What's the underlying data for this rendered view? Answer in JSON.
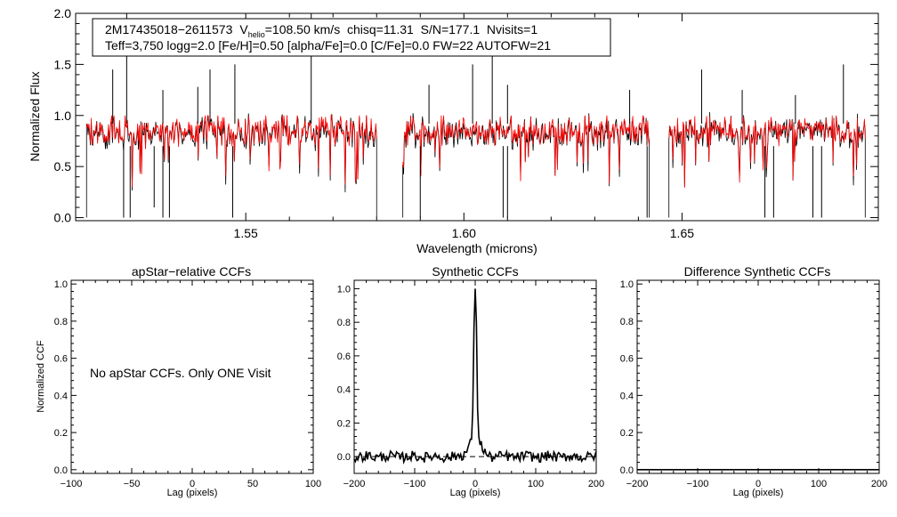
{
  "chart_data": [
    {
      "type": "line",
      "title": "",
      "xlabel": "Wavelength (microns)",
      "ylabel": "Normalized Flux",
      "xlim": [
        1.511,
        1.695
      ],
      "ylim": [
        -0.03,
        2.0
      ],
      "xticks": [
        1.55,
        1.6,
        1.65
      ],
      "xtick_labels": [
        "1.55",
        "1.60",
        "1.65"
      ],
      "yticks": [
        0.0,
        0.5,
        1.0,
        1.5,
        2.0
      ],
      "ytick_labels": [
        "0.0",
        "0.5",
        "1.0",
        "1.5",
        "2.0"
      ],
      "info_line1_star": "2M17435018−2611573",
      "info_line1_vhelio_label": "V",
      "info_line1_vhelio_sub": "helio",
      "info_line1_rest": "=108.50 km/s  chisq=11.31  S/N=177.1  Nvisits=1",
      "info_line2": "Teff=3,750 logg=2.0 [Fe/H]=0.50 [alpha/Fe]=0.0 [C/Fe]=0.0 FW=22 AUTOFW=21",
      "continuum_level": 0.92,
      "chips": [
        {
          "start": 1.5135,
          "end": 1.58
        },
        {
          "start": 1.586,
          "end": 1.6425
        },
        {
          "start": 1.647,
          "end": 1.692
        }
      ],
      "spikes": [
        {
          "x": 1.5227,
          "y": 2.0
        },
        {
          "x": 1.5195,
          "y": 1.45
        },
        {
          "x": 1.531,
          "y": 1.25
        },
        {
          "x": 1.539,
          "y": 1.28
        },
        {
          "x": 1.5418,
          "y": 1.45
        },
        {
          "x": 1.5475,
          "y": 1.5
        },
        {
          "x": 1.565,
          "y": 2.0
        },
        {
          "x": 1.592,
          "y": 1.3
        },
        {
          "x": 1.602,
          "y": 1.5
        },
        {
          "x": 1.6065,
          "y": 1.95
        },
        {
          "x": 1.61,
          "y": 1.3
        },
        {
          "x": 1.638,
          "y": 1.25
        },
        {
          "x": 1.6545,
          "y": 1.45
        },
        {
          "x": 1.6638,
          "y": 1.25
        },
        {
          "x": 1.676,
          "y": 1.2
        },
        {
          "x": 1.687,
          "y": 1.5
        }
      ],
      "dips": [
        {
          "x": 1.522,
          "y": 0.0
        },
        {
          "x": 1.5235,
          "y": 0.0
        },
        {
          "x": 1.529,
          "y": 0.1
        },
        {
          "x": 1.531,
          "y": 0.0
        },
        {
          "x": 1.5325,
          "y": 0.0
        },
        {
          "x": 1.547,
          "y": 0.0
        },
        {
          "x": 1.59,
          "y": 0.0
        },
        {
          "x": 1.609,
          "y": 0.0
        },
        {
          "x": 1.61,
          "y": 0.0
        },
        {
          "x": 1.642,
          "y": 0.0
        },
        {
          "x": 1.669,
          "y": 0.0
        },
        {
          "x": 1.671,
          "y": 0.0
        },
        {
          "x": 1.68,
          "y": 0.0
        },
        {
          "x": 1.682,
          "y": 0.0
        }
      ],
      "series": [
        {
          "name": "observed spectrum",
          "color": "#000000"
        },
        {
          "name": "synthetic fit",
          "color": "#ff0000"
        }
      ]
    },
    {
      "type": "line",
      "title": "apStar−relative CCFs",
      "xlabel": "Lag (pixels)",
      "ylabel": "Normalized CCF",
      "xlim": [
        -100,
        100
      ],
      "ylim": [
        -0.02,
        1.02
      ],
      "xticks": [
        -100,
        -50,
        0,
        50,
        100
      ],
      "xtick_labels": [
        "−100",
        "−50",
        "0",
        "50",
        "100"
      ],
      "yticks": [
        0.0,
        0.2,
        0.4,
        0.6,
        0.8,
        1.0
      ],
      "ytick_labels": [
        "0.0",
        "0.2",
        "0.4",
        "0.6",
        "0.8",
        "1.0"
      ],
      "note": "No apStar CCFs.  Only ONE Visit"
    },
    {
      "type": "line",
      "title": "Synthetic CCFs",
      "xlabel": "Lag (pixels)",
      "ylabel": "",
      "xlim": [
        -200,
        200
      ],
      "ylim": [
        -0.1,
        1.05
      ],
      "xticks": [
        -200,
        -100,
        0,
        100,
        200
      ],
      "xtick_labels": [
        "−200",
        "−100",
        "0",
        "100",
        "200"
      ],
      "yticks": [
        0.0,
        0.2,
        0.4,
        0.6,
        0.8,
        1.0
      ],
      "ytick_labels": [
        "0.0",
        "0.2",
        "0.4",
        "0.6",
        "0.8",
        "1.0"
      ],
      "peak_lag": 0,
      "peak_value": 1.0,
      "baseline": 0.0,
      "noise_amplitude": 0.03
    },
    {
      "type": "line",
      "title": "Difference Synthetic CCFs",
      "xlabel": "Lag (pixels)",
      "ylabel": "",
      "xlim": [
        -200,
        200
      ],
      "ylim": [
        -0.02,
        1.02
      ],
      "xticks": [
        -200,
        -100,
        0,
        100,
        200
      ],
      "xtick_labels": [
        "−200",
        "−100",
        "0",
        "100",
        "200"
      ],
      "yticks": [
        0.0,
        0.2,
        0.4,
        0.6,
        0.8,
        1.0
      ],
      "ytick_labels": [
        "0.0",
        "0.2",
        "0.4",
        "0.6",
        "0.8",
        "1.0"
      ],
      "flat_value": 0.0
    }
  ]
}
